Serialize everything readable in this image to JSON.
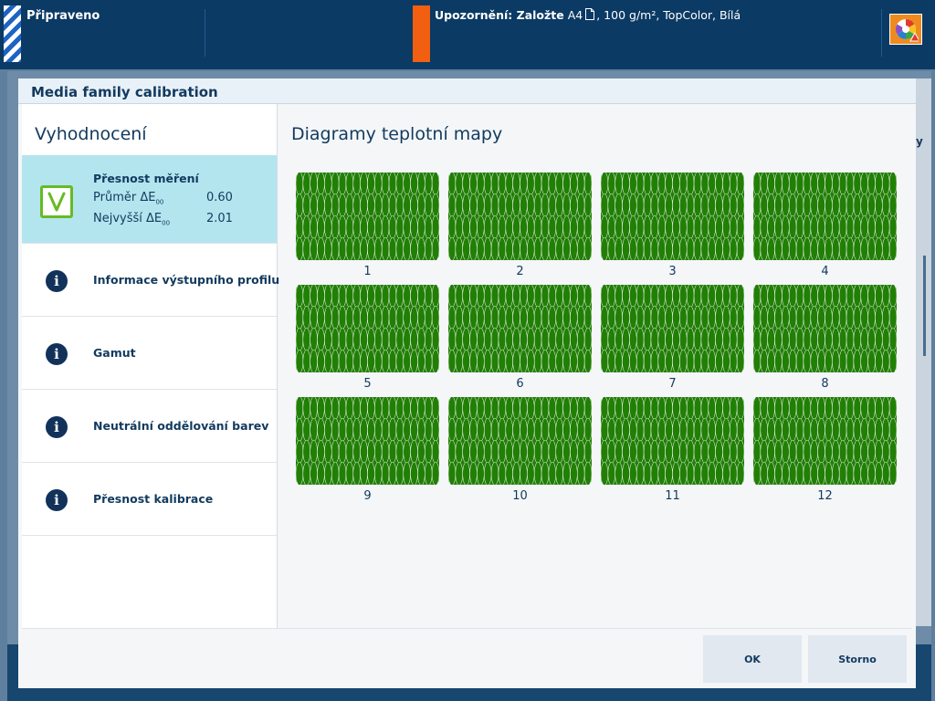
{
  "topbar": {
    "status": "Připraveno",
    "warning_label": "Upozornění: Založte",
    "warning_media_size": "A4",
    "warning_media_details": ", 100 g/m², TopColor, Bílá",
    "status_color": "#1e63c4",
    "warning_color": "#f25f10",
    "tray_icon": "media-tray-warning-icon"
  },
  "dialog": {
    "title": "Media family calibration",
    "left_heading": "Vyhodnocení",
    "right_heading": "Diagramy teplotní mapy"
  },
  "measurement": {
    "title": "Přesnost měření",
    "avg_label": "Průměr ΔE",
    "avg_sub": "00",
    "avg_value": "0.60",
    "max_label": "Nejvyšší ΔE",
    "max_sub": "00",
    "max_value": "2.01",
    "status_icon": "check-icon",
    "status_color": "#66bb22"
  },
  "left_items": [
    {
      "label": "Informace výstupního profilu",
      "icon": "info-icon"
    },
    {
      "label": "Gamut",
      "icon": "info-icon"
    },
    {
      "label": "Neutrální oddělování barev",
      "icon": "info-icon"
    },
    {
      "label": "Přesnost kalibrace",
      "icon": "info-icon"
    }
  ],
  "heatmaps": {
    "cell_color": "#217f06",
    "labels": [
      "1",
      "2",
      "3",
      "4",
      "5",
      "6",
      "7",
      "8",
      "9",
      "10",
      "11",
      "12"
    ]
  },
  "footer": {
    "ok_label": "OK",
    "cancel_label": "Storno"
  },
  "background": {
    "right_edge_text": "y"
  }
}
